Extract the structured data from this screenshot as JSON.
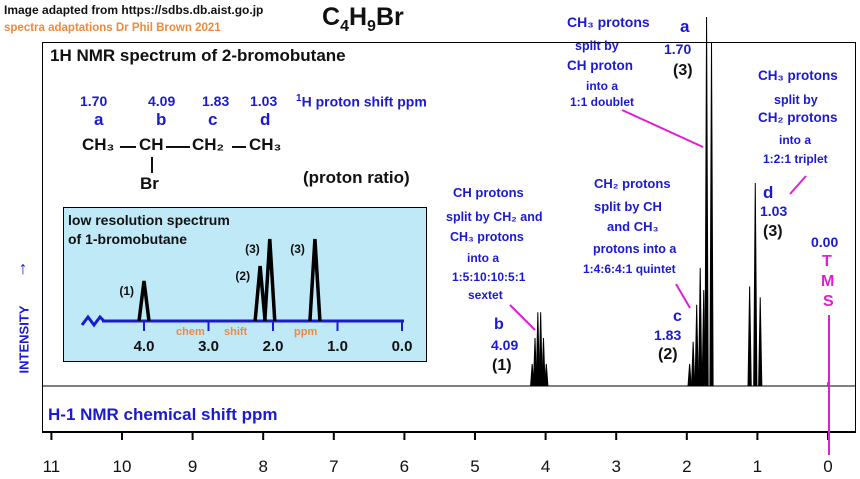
{
  "header": {
    "source": "Image adapted from https://sdbs.db.aist.go.jp",
    "credit": "spectra adaptations Dr Phil Brown 2021",
    "formula": {
      "c": "C",
      "c_sub": "4",
      "h": "H",
      "h_sub": "9",
      "br": "Br"
    }
  },
  "panel": {
    "title": "1H NMR spectrum of 2-bromobutane",
    "shifts": [
      "1.70",
      "4.09",
      "1.83",
      "1.03"
    ],
    "letters": [
      "a",
      "b",
      "c",
      "d"
    ],
    "shift_label_1": "1",
    "shift_label_2": "H proton shift  ppm",
    "structure": {
      "ch3_left": "CH₃",
      "ch": "CH",
      "ch2": "CH₂",
      "ch3_right": "CH₃",
      "br": "Br"
    },
    "proton_ratio": "(proton ratio)",
    "x_title": "H-1 NMR chemical shift  ppm",
    "y_title": "INTENSITY"
  },
  "inset": {
    "title_1": "low resolution spectrum",
    "title_2": "of 1-bromobutane",
    "chem": "chem",
    "shift": "shift",
    "ppm": "ppm",
    "ticks": [
      "4.0",
      "3.0",
      "2.0",
      "1.0",
      "0.0"
    ],
    "peaks": [
      {
        "shift": 4.0,
        "label": "(1)",
        "height": 0.4
      },
      {
        "shift": 2.2,
        "label": "(2)",
        "height": 0.55
      },
      {
        "shift": 2.05,
        "label": "(3)",
        "height": 0.82
      },
      {
        "shift": 1.35,
        "label": "(3)",
        "height": 0.82
      }
    ]
  },
  "annotations": {
    "ch_group": [
      "CH protons",
      "split by CH₂ and",
      "CH₃ protons",
      "into a",
      "1:5:10:10:5:1",
      "sextet"
    ],
    "b": [
      "b",
      "4.09",
      "(1)"
    ],
    "ch2_group": [
      "CH₂ protons",
      "split by CH",
      "and CH₃",
      "protons  into a",
      "1:4:6:4:1 quintet"
    ],
    "c": [
      "c",
      "1.83",
      "(2)"
    ],
    "ch3_a_group": [
      "CH₃ protons",
      "split by",
      "CH proton",
      "into a",
      "1:1 doublet"
    ],
    "a": [
      "a",
      "1.70",
      "(3)"
    ],
    "ch3_d_group": [
      "CH₃ protons",
      "split by",
      "CH₂ protons",
      "into a",
      "1:2:1 triplet"
    ],
    "d": [
      "d",
      "1.03",
      "(3)"
    ],
    "tms": [
      "0.00",
      "T",
      "M",
      "S"
    ]
  },
  "chart_data": {
    "type": "line",
    "title": "1H NMR spectrum of 2-bromobutane",
    "xlabel": "H-1 NMR chemical shift  ppm",
    "ylabel": "INTENSITY",
    "x_ticks": [
      "11",
      "10",
      "9",
      "8",
      "7",
      "6",
      "5",
      "4",
      "3",
      "2",
      "1",
      "0"
    ],
    "xlim": [
      11,
      0
    ],
    "reversed_x": true,
    "multiplets": [
      {
        "group": "b",
        "shift": 4.09,
        "ratio": 1,
        "pattern": "sextet",
        "lines": [
          4.19,
          4.15,
          4.11,
          4.07,
          4.03,
          3.99
        ],
        "heights": [
          0.06,
          0.13,
          0.2,
          0.2,
          0.13,
          0.06
        ]
      },
      {
        "group": "c",
        "shift": 1.83,
        "ratio": 2,
        "pattern": "quintet",
        "lines": [
          1.96,
          1.91,
          1.86,
          1.81,
          1.76
        ],
        "heights": [
          0.06,
          0.12,
          0.22,
          0.32,
          0.26
        ]
      },
      {
        "group": "a",
        "shift": 1.7,
        "ratio": 3,
        "pattern": "doublet",
        "lines": [
          1.72,
          1.65
        ],
        "heights": [
          1.0,
          0.93
        ]
      },
      {
        "group": "d",
        "shift": 1.03,
        "ratio": 3,
        "pattern": "triplet",
        "lines": [
          1.11,
          1.03,
          0.96
        ],
        "heights": [
          0.27,
          0.55,
          0.24
        ]
      }
    ],
    "reference": {
      "label": "TMS",
      "shift": 0.0
    }
  }
}
